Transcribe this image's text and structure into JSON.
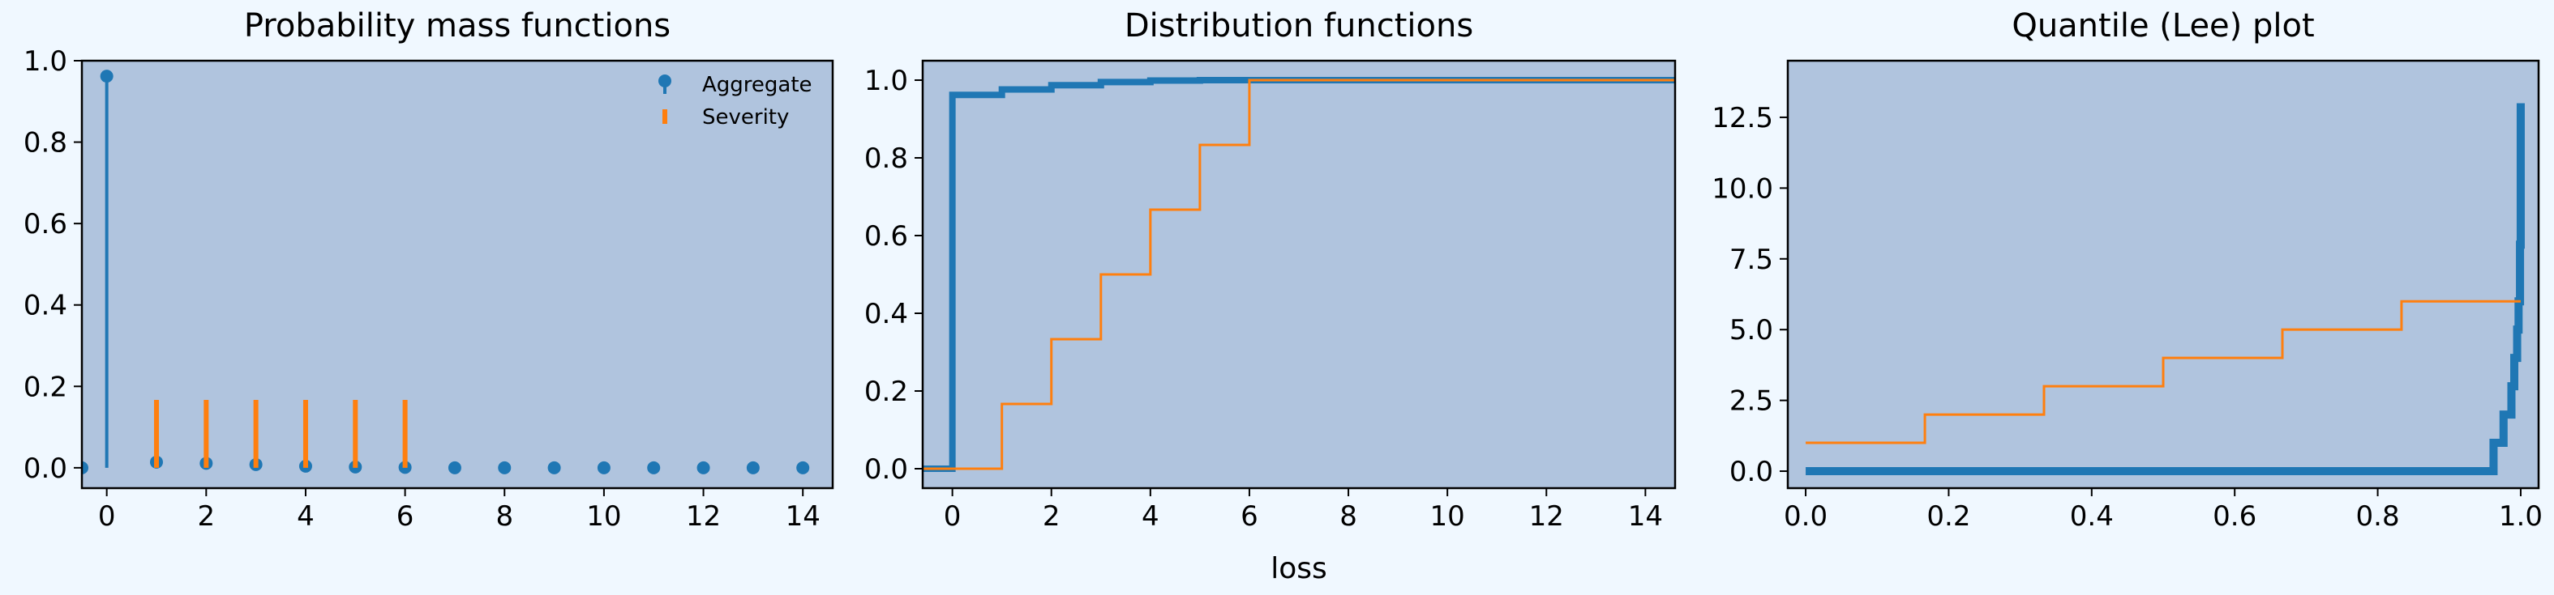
{
  "figure": {
    "background": "#f0f8ff",
    "axes_background": "#b0c4de",
    "colors": {
      "aggregate": "#1f77b4",
      "severity": "#ff7f0e"
    }
  },
  "chart_data": [
    {
      "type": "stem",
      "title": "Probability mass functions",
      "xlabel": "",
      "ylabel": "",
      "xlim": [
        -0.5,
        14.6
      ],
      "ylim": [
        -0.05,
        1.0
      ],
      "xticks": [
        0,
        2,
        4,
        6,
        8,
        10,
        12,
        14
      ],
      "yticks": [
        0.0,
        0.2,
        0.4,
        0.6,
        0.8,
        1.0
      ],
      "xtick_labels": [
        "0",
        "2",
        "4",
        "6",
        "8",
        "10",
        "12",
        "14"
      ],
      "ytick_labels": [
        "0.0",
        "0.2",
        "0.4",
        "0.6",
        "0.8",
        "1.0"
      ],
      "legend": {
        "placement": "top-right",
        "entries": [
          "Aggregate",
          "Severity"
        ]
      },
      "grid": false,
      "series": [
        {
          "name": "Aggregate",
          "style": "stem-with-markers",
          "x": [
            -0.5,
            0,
            1,
            2,
            3,
            4,
            5,
            6,
            7,
            8,
            9,
            10,
            11,
            12,
            13,
            14
          ],
          "y": [
            0.0,
            0.962,
            0.014,
            0.011,
            0.008,
            0.004,
            0.002,
            0.001,
            0.0,
            0.0,
            0.0,
            0.0,
            0.0,
            0.0,
            0.0,
            0.0
          ]
        },
        {
          "name": "Severity",
          "style": "stem",
          "x": [
            1,
            2,
            3,
            4,
            5,
            6
          ],
          "y": [
            0.1667,
            0.1667,
            0.1667,
            0.1667,
            0.1667,
            0.1667
          ]
        }
      ]
    },
    {
      "type": "step",
      "title": "Distribution functions",
      "xlabel": "loss",
      "ylabel": "",
      "xlim": [
        -0.6,
        14.6
      ],
      "ylim": [
        -0.05,
        1.05
      ],
      "xticks": [
        0,
        2,
        4,
        6,
        8,
        10,
        12,
        14
      ],
      "yticks": [
        0.0,
        0.2,
        0.4,
        0.6,
        0.8,
        1.0
      ],
      "xtick_labels": [
        "0",
        "2",
        "4",
        "6",
        "8",
        "10",
        "12",
        "14"
      ],
      "ytick_labels": [
        "0.0",
        "0.2",
        "0.4",
        "0.6",
        "0.8",
        "1.0"
      ],
      "grid": false,
      "series": [
        {
          "name": "Aggregate",
          "x": [
            -0.6,
            0,
            1,
            2,
            3,
            4,
            5,
            6,
            7,
            14.6
          ],
          "y": [
            0.0,
            0.962,
            0.976,
            0.987,
            0.995,
            0.999,
            1.0,
            1.0,
            1.0,
            1.0
          ]
        },
        {
          "name": "Severity",
          "x": [
            -0.6,
            1,
            2,
            3,
            4,
            5,
            6,
            14.6
          ],
          "y": [
            0.0,
            0.1667,
            0.3333,
            0.5,
            0.6667,
            0.8333,
            1.0,
            1.0
          ]
        }
      ]
    },
    {
      "type": "step",
      "title": "Quantile (Lee) plot",
      "xlabel": "",
      "ylabel": "",
      "xlim": [
        -0.025,
        1.025
      ],
      "ylim": [
        -0.6,
        14.5
      ],
      "xticks": [
        0.0,
        0.2,
        0.4,
        0.6,
        0.8,
        1.0
      ],
      "yticks": [
        0.0,
        2.5,
        5.0,
        7.5,
        10.0,
        12.5
      ],
      "xtick_labels": [
        "0.0",
        "0.2",
        "0.4",
        "0.6",
        "0.8",
        "1.0"
      ],
      "ytick_labels": [
        "0.0",
        "2.5",
        "5.0",
        "7.5",
        "10.0",
        "12.5"
      ],
      "grid": false,
      "series": [
        {
          "name": "Aggregate",
          "x": [
            0,
            0.962,
            0.976,
            0.987,
            0.991,
            0.995,
            0.997,
            0.999,
            1.0
          ],
          "y": [
            0,
            1,
            2,
            3,
            4,
            5,
            6,
            8,
            13
          ]
        },
        {
          "name": "Severity",
          "x": [
            0,
            0.1667,
            0.3333,
            0.5,
            0.6667,
            0.8333,
            1.0
          ],
          "y": [
            1,
            2,
            3,
            4,
            5,
            6,
            6
          ]
        }
      ]
    }
  ]
}
